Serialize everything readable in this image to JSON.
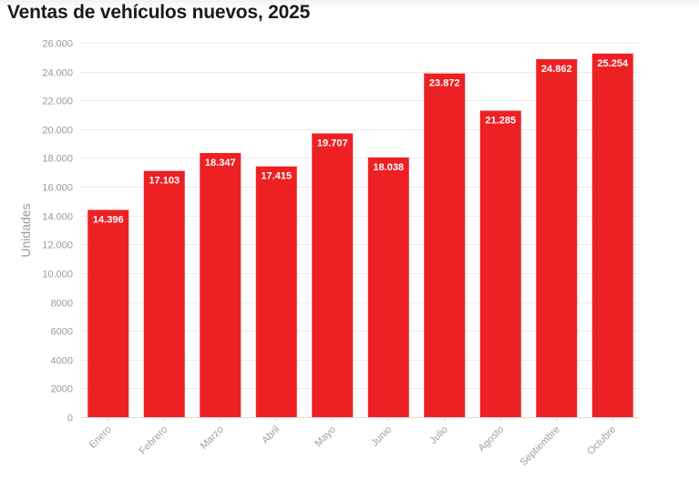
{
  "chart_data": {
    "type": "bar",
    "title": "Ventas de vehículos nuevos, 2025",
    "ylabel": "Unidades",
    "xlabel": "",
    "categories": [
      "Enero",
      "Febrero",
      "Marzo",
      "Abril",
      "Mayo",
      "Junio",
      "Julio",
      "Agosto",
      "Septiembre",
      "Octubre"
    ],
    "values": [
      14396,
      17103,
      18347,
      17415,
      19707,
      18038,
      23872,
      21285,
      24862,
      25254
    ],
    "value_labels": [
      "14.396",
      "17.103",
      "18.347",
      "17.415",
      "19.707",
      "18.038",
      "23.872",
      "21.285",
      "24.862",
      "25.254"
    ],
    "yticks": [
      0,
      2000,
      4000,
      6000,
      8000,
      10000,
      12000,
      14000,
      16000,
      18000,
      20000,
      22000,
      24000,
      26000
    ],
    "ytick_labels": [
      "0",
      "2000",
      "4000",
      "6000",
      "8000",
      "10.000",
      "12.000",
      "14.000",
      "16.000",
      "18.000",
      "20.000",
      "22.000",
      "24.000",
      "26.000"
    ],
    "ylim": [
      0,
      26000
    ],
    "grid": true,
    "bar_color": "#ed2024",
    "label_color": "#ffffff"
  }
}
